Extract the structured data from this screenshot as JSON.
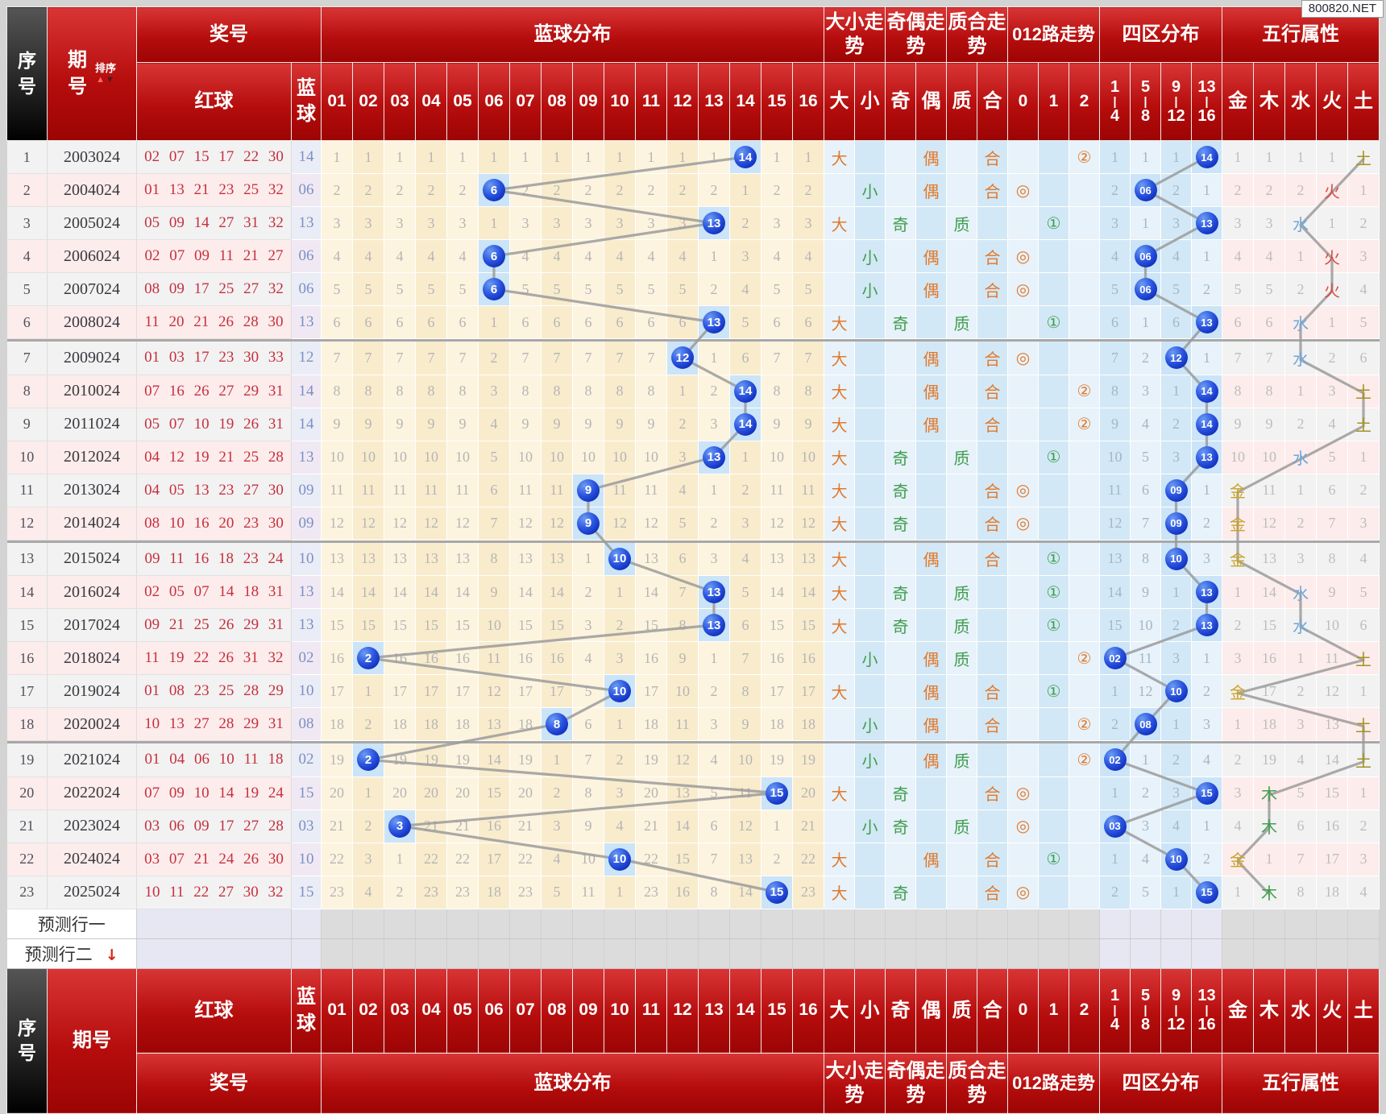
{
  "watermark": "800820.NET",
  "header": {
    "seq": "序号",
    "period": "期号",
    "sort_label": "排序",
    "award": "奖号",
    "red": "红球",
    "blue": "蓝球",
    "dist_group": "蓝球分布",
    "dist_cols": [
      "01",
      "02",
      "03",
      "04",
      "05",
      "06",
      "07",
      "08",
      "09",
      "10",
      "11",
      "12",
      "13",
      "14",
      "15",
      "16"
    ],
    "size_group": "大小走势",
    "size_cols": [
      "大",
      "小"
    ],
    "parity_group": "奇偶走势",
    "parity_cols": [
      "奇",
      "偶"
    ],
    "prime_group": "质合走势",
    "prime_cols": [
      "质",
      "合"
    ],
    "road_group": "012路走势",
    "road_cols": [
      "0",
      "1",
      "2"
    ],
    "zone_group": "四区分布",
    "zone_cols": [
      [
        "1",
        "4"
      ],
      [
        "5",
        "8"
      ],
      [
        "9",
        "12"
      ],
      [
        "13",
        "16"
      ]
    ],
    "element_group": "五行属性",
    "element_cols": [
      "金",
      "木",
      "水",
      "火",
      "土"
    ]
  },
  "road_symbols": [
    "◎",
    "①",
    "②"
  ],
  "road_symbol_colors": [
    "org",
    "grn",
    "org"
  ],
  "trend_colors": {
    "大": "org",
    "小": "grn",
    "奇": "grn",
    "偶": "org",
    "质": "grn",
    "合": "org"
  },
  "predict": {
    "labels": [
      "预测行一",
      "预测行二"
    ],
    "arrow_row": 1,
    "arrow": "↓"
  },
  "separators_after": [
    6,
    12,
    18
  ],
  "colors": {
    "header_red": "#b60d0d",
    "header_black": "#1a1a1a",
    "row_odd": "#f2f2f2",
    "row_even": "#fdecec",
    "cream": "#fdf4df",
    "trend_blue": "#d2e8f6",
    "hit_cell": "#cbe4f7",
    "lavender": "#e7e7f3",
    "predict_grey": "#dcdcdc",
    "ball_blue": "#1d3fd2",
    "orange": "#e2782a",
    "green": "#3f9e4d",
    "red_ball_text": "#c5303e",
    "blue_col_text": "#7d8fc4",
    "omission_grey": "#b5b5b5",
    "zigzag_line": "#9b9b9b",
    "element_colors": [
      "#c9a227",
      "#3f9e4d",
      "#6fa7d8",
      "#d94a43",
      "#a59420"
    ]
  },
  "rows": [
    {
      "seq": 1,
      "period": "2003024",
      "reds": "02 07 15 17 22 30",
      "blue": "14",
      "size": "大",
      "parity": "偶",
      "prime": "合",
      "road": 2,
      "dist": [
        1,
        1,
        1,
        1,
        1,
        1,
        1,
        1,
        1,
        1,
        1,
        1,
        1,
        "B",
        1,
        1
      ],
      "zones": [
        1,
        1,
        1,
        "B"
      ],
      "elems": [
        1,
        1,
        1,
        1,
        "B"
      ]
    },
    {
      "seq": 2,
      "period": "2004024",
      "reds": "01 13 21 23 25 32",
      "blue": "06",
      "size": "小",
      "parity": "偶",
      "prime": "合",
      "road": 0,
      "dist": [
        2,
        2,
        2,
        2,
        2,
        "B",
        2,
        2,
        2,
        2,
        2,
        2,
        2,
        1,
        2,
        2
      ],
      "zones": [
        2,
        "B",
        2,
        1
      ],
      "elems": [
        2,
        2,
        2,
        "B",
        1
      ]
    },
    {
      "seq": 3,
      "period": "2005024",
      "reds": "05 09 14 27 31 32",
      "blue": "13",
      "size": "大",
      "parity": "奇",
      "prime": "质",
      "road": 1,
      "dist": [
        3,
        3,
        3,
        3,
        3,
        1,
        3,
        3,
        3,
        3,
        3,
        3,
        "B",
        2,
        3,
        3
      ],
      "zones": [
        3,
        1,
        3,
        "B"
      ],
      "elems": [
        3,
        3,
        "B",
        1,
        2
      ]
    },
    {
      "seq": 4,
      "period": "2006024",
      "reds": "02 07 09 11 21 27",
      "blue": "06",
      "size": "小",
      "parity": "偶",
      "prime": "合",
      "road": 0,
      "dist": [
        4,
        4,
        4,
        4,
        4,
        "B",
        4,
        4,
        4,
        4,
        4,
        4,
        1,
        3,
        4,
        4
      ],
      "zones": [
        4,
        "B",
        4,
        1
      ],
      "elems": [
        4,
        4,
        1,
        "B",
        3
      ]
    },
    {
      "seq": 5,
      "period": "2007024",
      "reds": "08 09 17 25 27 32",
      "blue": "06",
      "size": "小",
      "parity": "偶",
      "prime": "合",
      "road": 0,
      "dist": [
        5,
        5,
        5,
        5,
        5,
        "B",
        5,
        5,
        5,
        5,
        5,
        5,
        2,
        4,
        5,
        5
      ],
      "zones": [
        5,
        "B",
        5,
        2
      ],
      "elems": [
        5,
        5,
        2,
        "B",
        4
      ]
    },
    {
      "seq": 6,
      "period": "2008024",
      "reds": "11 20 21 26 28 30",
      "blue": "13",
      "size": "大",
      "parity": "奇",
      "prime": "质",
      "road": 1,
      "dist": [
        6,
        6,
        6,
        6,
        6,
        1,
        6,
        6,
        6,
        6,
        6,
        6,
        "B",
        5,
        6,
        6
      ],
      "zones": [
        6,
        1,
        6,
        "B"
      ],
      "elems": [
        6,
        6,
        "B",
        1,
        5
      ]
    },
    {
      "seq": 7,
      "period": "2009024",
      "reds": "01 03 17 23 30 33",
      "blue": "12",
      "size": "大",
      "parity": "偶",
      "prime": "合",
      "road": 0,
      "dist": [
        7,
        7,
        7,
        7,
        7,
        2,
        7,
        7,
        7,
        7,
        7,
        "B",
        1,
        6,
        7,
        7
      ],
      "zones": [
        7,
        2,
        "B",
        1
      ],
      "elems": [
        7,
        7,
        "B",
        2,
        6
      ]
    },
    {
      "seq": 8,
      "period": "2010024",
      "reds": "07 16 26 27 29 31",
      "blue": "14",
      "size": "大",
      "parity": "偶",
      "prime": "合",
      "road": 2,
      "dist": [
        8,
        8,
        8,
        8,
        8,
        3,
        8,
        8,
        8,
        8,
        8,
        1,
        2,
        "B",
        8,
        8
      ],
      "zones": [
        8,
        3,
        1,
        "B"
      ],
      "elems": [
        8,
        8,
        1,
        3,
        "B"
      ]
    },
    {
      "seq": 9,
      "period": "2011024",
      "reds": "05 07 10 19 26 31",
      "blue": "14",
      "size": "大",
      "parity": "偶",
      "prime": "合",
      "road": 2,
      "dist": [
        9,
        9,
        9,
        9,
        9,
        4,
        9,
        9,
        9,
        9,
        9,
        2,
        3,
        "B",
        9,
        9
      ],
      "zones": [
        9,
        4,
        2,
        "B"
      ],
      "elems": [
        9,
        9,
        2,
        4,
        "B"
      ]
    },
    {
      "seq": 10,
      "period": "2012024",
      "reds": "04 12 19 21 25 28",
      "blue": "13",
      "size": "大",
      "parity": "奇",
      "prime": "质",
      "road": 1,
      "dist": [
        10,
        10,
        10,
        10,
        10,
        5,
        10,
        10,
        10,
        10,
        10,
        3,
        "B",
        1,
        10,
        10
      ],
      "zones": [
        10,
        5,
        3,
        "B"
      ],
      "elems": [
        10,
        10,
        "B",
        5,
        1
      ]
    },
    {
      "seq": 11,
      "period": "2013024",
      "reds": "04 05 13 23 27 30",
      "blue": "09",
      "size": "大",
      "parity": "奇",
      "prime": "合",
      "road": 0,
      "dist": [
        11,
        11,
        11,
        11,
        11,
        6,
        11,
        11,
        "B",
        11,
        11,
        4,
        1,
        2,
        11,
        11
      ],
      "zones": [
        11,
        6,
        "B",
        1
      ],
      "elems": [
        "B",
        11,
        1,
        6,
        2
      ]
    },
    {
      "seq": 12,
      "period": "2014024",
      "reds": "08 10 16 20 23 30",
      "blue": "09",
      "size": "大",
      "parity": "奇",
      "prime": "合",
      "road": 0,
      "dist": [
        12,
        12,
        12,
        12,
        12,
        7,
        12,
        12,
        "B",
        12,
        12,
        5,
        2,
        3,
        12,
        12
      ],
      "zones": [
        12,
        7,
        "B",
        2
      ],
      "elems": [
        "B",
        12,
        2,
        7,
        3
      ]
    },
    {
      "seq": 13,
      "period": "2015024",
      "reds": "09 11 16 18 23 24",
      "blue": "10",
      "size": "大",
      "parity": "偶",
      "prime": "合",
      "road": 1,
      "dist": [
        13,
        13,
        13,
        13,
        13,
        8,
        13,
        13,
        1,
        "B",
        13,
        6,
        3,
        4,
        13,
        13
      ],
      "zones": [
        13,
        8,
        "B",
        3
      ],
      "elems": [
        "B",
        13,
        3,
        8,
        4
      ]
    },
    {
      "seq": 14,
      "period": "2016024",
      "reds": "02 05 07 14 18 31",
      "blue": "13",
      "size": "大",
      "parity": "奇",
      "prime": "质",
      "road": 1,
      "dist": [
        14,
        14,
        14,
        14,
        14,
        9,
        14,
        14,
        2,
        1,
        14,
        7,
        "B",
        5,
        14,
        14
      ],
      "zones": [
        14,
        9,
        1,
        "B"
      ],
      "elems": [
        1,
        14,
        "B",
        9,
        5
      ]
    },
    {
      "seq": 15,
      "period": "2017024",
      "reds": "09 21 25 26 29 31",
      "blue": "13",
      "size": "大",
      "parity": "奇",
      "prime": "质",
      "road": 1,
      "dist": [
        15,
        15,
        15,
        15,
        15,
        10,
        15,
        15,
        3,
        2,
        15,
        8,
        "B",
        6,
        15,
        15
      ],
      "zones": [
        15,
        10,
        2,
        "B"
      ],
      "elems": [
        2,
        15,
        "B",
        10,
        6
      ]
    },
    {
      "seq": 16,
      "period": "2018024",
      "reds": "11 19 22 26 31 32",
      "blue": "02",
      "size": "小",
      "parity": "偶",
      "prime": "质",
      "road": 2,
      "dist": [
        16,
        "B",
        16,
        16,
        16,
        11,
        16,
        16,
        4,
        3,
        16,
        9,
        1,
        7,
        16,
        16
      ],
      "zones": [
        "B",
        11,
        3,
        1
      ],
      "elems": [
        3,
        16,
        1,
        11,
        "B"
      ]
    },
    {
      "seq": 17,
      "period": "2019024",
      "reds": "01 08 23 25 28 29",
      "blue": "10",
      "size": "大",
      "parity": "偶",
      "prime": "合",
      "road": 1,
      "dist": [
        17,
        1,
        17,
        17,
        17,
        12,
        17,
        17,
        5,
        "B",
        17,
        10,
        2,
        8,
        17,
        17
      ],
      "zones": [
        1,
        12,
        "B",
        2
      ],
      "elems": [
        "B",
        17,
        2,
        12,
        1
      ]
    },
    {
      "seq": 18,
      "period": "2020024",
      "reds": "10 13 27 28 29 31",
      "blue": "08",
      "size": "小",
      "parity": "偶",
      "prime": "合",
      "road": 2,
      "dist": [
        18,
        2,
        18,
        18,
        18,
        13,
        18,
        "B",
        6,
        1,
        18,
        11,
        3,
        9,
        18,
        18
      ],
      "zones": [
        2,
        "B",
        1,
        3
      ],
      "elems": [
        1,
        18,
        3,
        13,
        "B"
      ]
    },
    {
      "seq": 19,
      "period": "2021024",
      "reds": "01 04 06 10 11 18",
      "blue": "02",
      "size": "小",
      "parity": "偶",
      "prime": "质",
      "road": 2,
      "dist": [
        19,
        "B",
        19,
        19,
        19,
        14,
        19,
        1,
        7,
        2,
        19,
        12,
        4,
        10,
        19,
        19
      ],
      "zones": [
        "B",
        1,
        2,
        4
      ],
      "elems": [
        2,
        19,
        4,
        14,
        "B"
      ]
    },
    {
      "seq": 20,
      "period": "2022024",
      "reds": "07 09 10 14 19 24",
      "blue": "15",
      "size": "大",
      "parity": "奇",
      "prime": "合",
      "road": 0,
      "dist": [
        20,
        1,
        20,
        20,
        20,
        15,
        20,
        2,
        8,
        3,
        20,
        13,
        5,
        11,
        "B",
        20
      ],
      "zones": [
        1,
        2,
        3,
        "B"
      ],
      "elems": [
        3,
        "B",
        5,
        15,
        1
      ]
    },
    {
      "seq": 21,
      "period": "2023024",
      "reds": "03 06 09 17 27 28",
      "blue": "03",
      "size": "小",
      "parity": "奇",
      "prime": "质",
      "road": 0,
      "dist": [
        21,
        2,
        "B",
        21,
        21,
        16,
        21,
        3,
        9,
        4,
        21,
        14,
        6,
        12,
        1,
        21
      ],
      "zones": [
        "B",
        3,
        4,
        1
      ],
      "elems": [
        4,
        "B",
        6,
        16,
        2
      ]
    },
    {
      "seq": 22,
      "period": "2024024",
      "reds": "03 07 21 24 26 30",
      "blue": "10",
      "size": "大",
      "parity": "偶",
      "prime": "合",
      "road": 1,
      "dist": [
        22,
        3,
        1,
        22,
        22,
        17,
        22,
        4,
        10,
        "B",
        22,
        15,
        7,
        13,
        2,
        22
      ],
      "zones": [
        1,
        4,
        "B",
        2
      ],
      "elems": [
        "B",
        1,
        7,
        17,
        3
      ]
    },
    {
      "seq": 23,
      "period": "2025024",
      "reds": "10 11 22 27 30 32",
      "blue": "15",
      "size": "大",
      "parity": "奇",
      "prime": "合",
      "road": 0,
      "dist": [
        23,
        4,
        2,
        23,
        23,
        18,
        23,
        5,
        11,
        1,
        23,
        16,
        8,
        14,
        "B",
        23
      ],
      "zones": [
        2,
        5,
        1,
        "B"
      ],
      "elems": [
        1,
        "B",
        8,
        18,
        4
      ]
    }
  ]
}
